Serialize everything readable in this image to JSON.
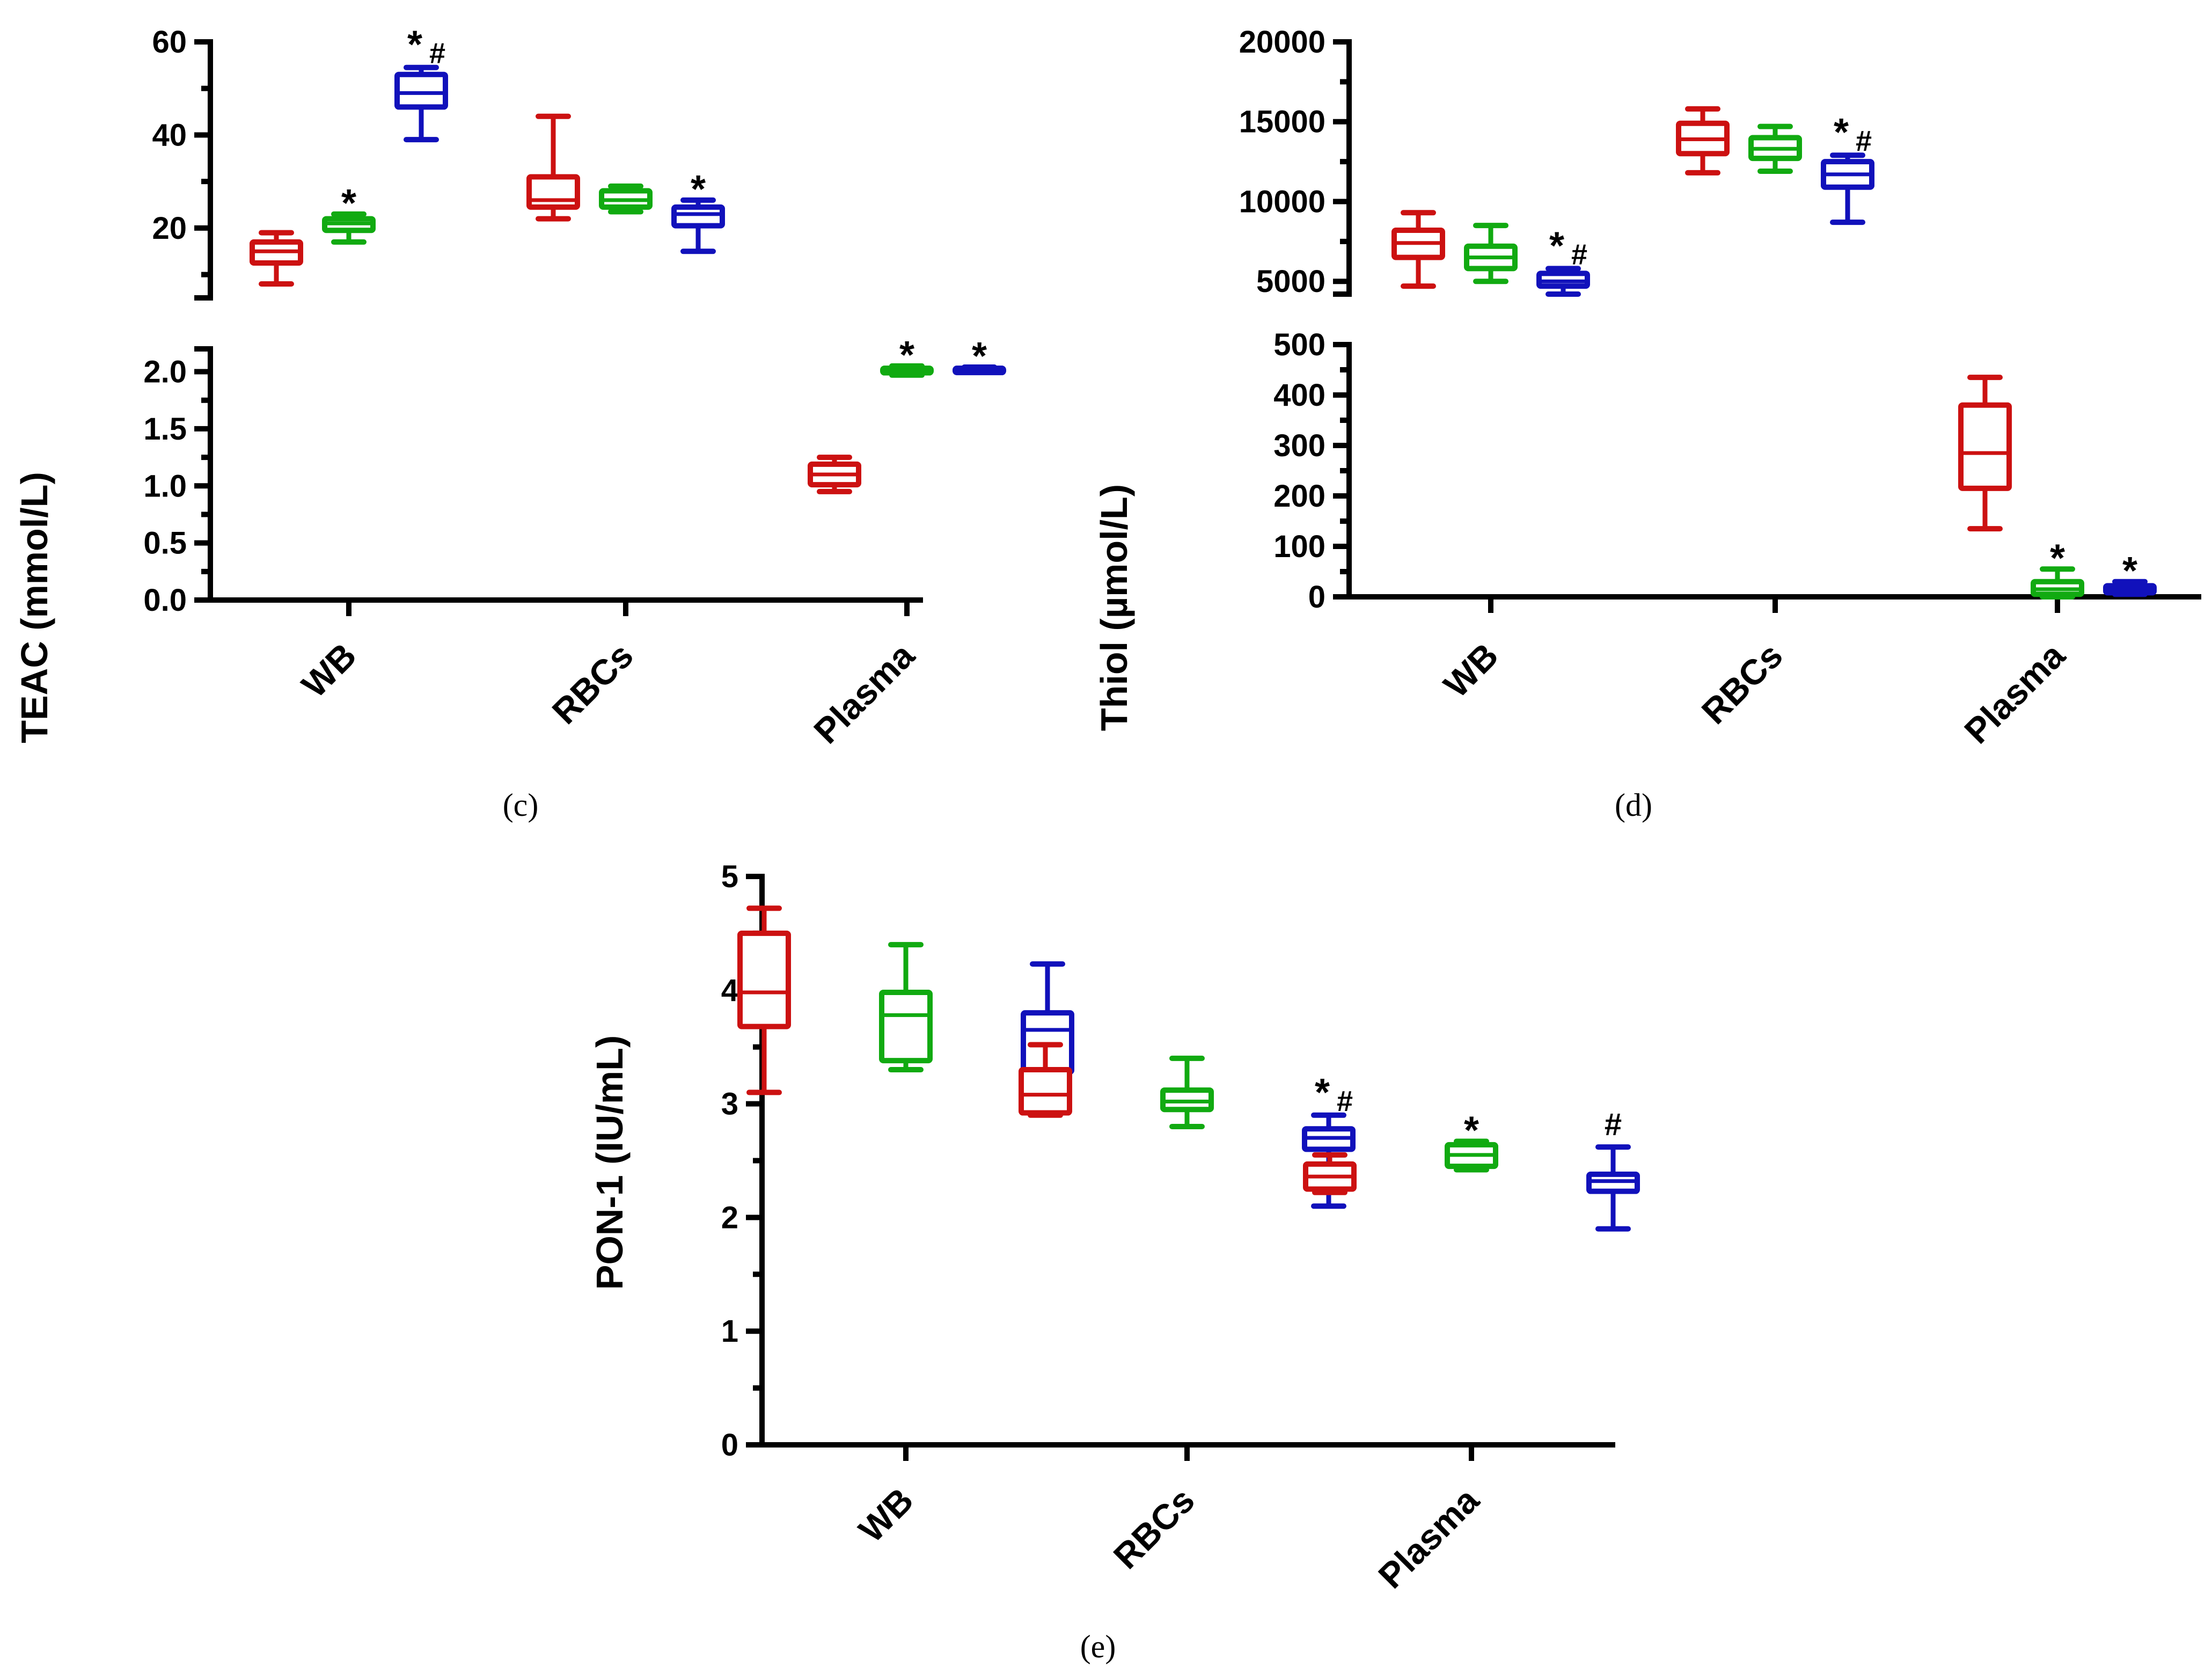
{
  "colors": {
    "g1": "#cc1111",
    "g2": "#11aa11",
    "g3": "#1111bb",
    "axis": "#000000"
  },
  "chart_data": [
    {
      "id": "c",
      "type": "box",
      "caption": "(c)",
      "ylabel": "TEAC (mmol/L)",
      "categories": [
        "WB",
        "RBCs",
        "Plasma"
      ],
      "broken_axis": true,
      "upper": {
        "ylim": [
          5,
          60
        ],
        "ticks": [
          20,
          40,
          60
        ],
        "tick_labels": [
          "20",
          "40",
          "60"
        ],
        "minor_ticks": [
          10,
          30,
          50
        ]
      },
      "lower": {
        "ylim": [
          0,
          2.2
        ],
        "ticks": [
          0,
          0.5,
          1.0,
          1.5,
          2.0
        ],
        "tick_labels": [
          "0.0",
          "0.5",
          "1.0",
          "1.5",
          "2.0"
        ],
        "minor_ticks": [
          0.25,
          0.75,
          1.25,
          1.75
        ]
      },
      "boxes": [
        {
          "cat": 0,
          "g": 0,
          "seg": "upper",
          "min": 8,
          "q1": 12.5,
          "med": 15,
          "q3": 17,
          "max": 19,
          "sig": ""
        },
        {
          "cat": 0,
          "g": 1,
          "seg": "upper",
          "min": 17,
          "q1": 19.5,
          "med": 21,
          "q3": 22,
          "max": 23,
          "sig": "*"
        },
        {
          "cat": 0,
          "g": 2,
          "seg": "upper",
          "min": 39,
          "q1": 46,
          "med": 49,
          "q3": 53,
          "max": 54.5,
          "sig": "*#"
        },
        {
          "cat": 1,
          "g": 0,
          "seg": "upper",
          "min": 22,
          "q1": 24.5,
          "med": 26,
          "q3": 31,
          "max": 44,
          "sig": ""
        },
        {
          "cat": 1,
          "g": 1,
          "seg": "upper",
          "min": 23.5,
          "q1": 24.5,
          "med": 26,
          "q3": 28,
          "max": 29,
          "sig": ""
        },
        {
          "cat": 1,
          "g": 2,
          "seg": "upper",
          "min": 15,
          "q1": 20.5,
          "med": 23,
          "q3": 24.5,
          "max": 26,
          "sig": "*"
        },
        {
          "cat": 2,
          "g": 0,
          "seg": "lower",
          "min": 0.95,
          "q1": 1.01,
          "med": 1.1,
          "q3": 1.19,
          "max": 1.25,
          "sig": ""
        },
        {
          "cat": 2,
          "g": 1,
          "seg": "lower",
          "min": 1.97,
          "q1": 1.99,
          "med": 2.01,
          "q3": 2.03,
          "max": 2.05,
          "sig": "*"
        },
        {
          "cat": 2,
          "g": 2,
          "seg": "lower",
          "min": 2.0,
          "q1": 2.01,
          "med": 2.02,
          "q3": 2.03,
          "max": 2.04,
          "sig": "*"
        }
      ]
    },
    {
      "id": "d",
      "type": "box",
      "caption": "(d)",
      "ylabel": "Thiol (µmol/L)",
      "categories": [
        "WB",
        "RBCs",
        "Plasma"
      ],
      "broken_axis": true,
      "upper": {
        "ylim": [
          4200,
          20000
        ],
        "ticks": [
          5000,
          10000,
          15000,
          20000
        ],
        "tick_labels": [
          "5000",
          "10000",
          "15000",
          "20000"
        ],
        "minor_ticks": [
          7500,
          12500,
          17500
        ]
      },
      "lower": {
        "ylim": [
          0,
          500
        ],
        "ticks": [
          0,
          100,
          200,
          300,
          400,
          500
        ],
        "tick_labels": [
          "0",
          "100",
          "200",
          "300",
          "400",
          "500"
        ],
        "minor_ticks": [
          50,
          150,
          250,
          350,
          450
        ]
      },
      "boxes": [
        {
          "cat": 0,
          "g": 0,
          "seg": "upper",
          "min": 4700,
          "q1": 6500,
          "med": 7400,
          "q3": 8200,
          "max": 9300,
          "sig": ""
        },
        {
          "cat": 0,
          "g": 1,
          "seg": "upper",
          "min": 5000,
          "q1": 5800,
          "med": 6500,
          "q3": 7200,
          "max": 8500,
          "sig": ""
        },
        {
          "cat": 0,
          "g": 2,
          "seg": "upper",
          "min": 4200,
          "q1": 4700,
          "med": 5000,
          "q3": 5500,
          "max": 5800,
          "sig": "*#"
        },
        {
          "cat": 1,
          "g": 0,
          "seg": "upper",
          "min": 11800,
          "q1": 13000,
          "med": 13900,
          "q3": 14900,
          "max": 15800,
          "sig": ""
        },
        {
          "cat": 1,
          "g": 1,
          "seg": "upper",
          "min": 11900,
          "q1": 12700,
          "med": 13300,
          "q3": 14000,
          "max": 14700,
          "sig": ""
        },
        {
          "cat": 1,
          "g": 2,
          "seg": "upper",
          "min": 8700,
          "q1": 10900,
          "med": 11700,
          "q3": 12500,
          "max": 12900,
          "sig": "*#"
        },
        {
          "cat": 2,
          "g": 0,
          "seg": "lower",
          "min": 135,
          "q1": 215,
          "med": 285,
          "q3": 380,
          "max": 435,
          "sig": ""
        },
        {
          "cat": 2,
          "g": 1,
          "seg": "lower",
          "min": 0,
          "q1": 5,
          "med": 15,
          "q3": 30,
          "max": 55,
          "sig": "*"
        },
        {
          "cat": 2,
          "g": 2,
          "seg": "lower",
          "min": 5,
          "q1": 8,
          "med": 14,
          "q3": 22,
          "max": 30,
          "sig": "*"
        }
      ]
    },
    {
      "id": "e",
      "type": "box",
      "caption": "(e)",
      "ylabel": "PON-1 (IU/mL)",
      "categories": [
        "WB",
        "RBCs",
        "Plasma"
      ],
      "broken_axis": false,
      "upper": {
        "ylim": [
          0,
          5
        ],
        "ticks": [
          0,
          1,
          2,
          3,
          4,
          5
        ],
        "tick_labels": [
          "0",
          "1",
          "2",
          "3",
          "4",
          "5"
        ],
        "minor_ticks": [
          0.5,
          1.5,
          2.5,
          3.5,
          4.5
        ]
      },
      "boxes": [
        {
          "cat": 0,
          "g": 0,
          "seg": "upper",
          "min": 3.1,
          "q1": 3.68,
          "med": 3.98,
          "q3": 4.5,
          "max": 4.72,
          "sig": ""
        },
        {
          "cat": 0,
          "g": 1,
          "seg": "upper",
          "min": 3.3,
          "q1": 3.38,
          "med": 3.78,
          "q3": 3.98,
          "max": 4.4,
          "sig": ""
        },
        {
          "cat": 0,
          "g": 2,
          "seg": "upper",
          "min": 3.18,
          "q1": 3.28,
          "med": 3.65,
          "q3": 3.8,
          "max": 4.23,
          "sig": ""
        },
        {
          "cat": 1,
          "g": 0,
          "seg": "upper",
          "min": 2.9,
          "q1": 2.92,
          "med": 3.08,
          "q3": 3.3,
          "max": 3.52,
          "sig": ""
        },
        {
          "cat": 1,
          "g": 1,
          "seg": "upper",
          "min": 2.8,
          "q1": 2.95,
          "med": 3.02,
          "q3": 3.12,
          "max": 3.4,
          "sig": ""
        },
        {
          "cat": 1,
          "g": 2,
          "seg": "upper",
          "min": 2.1,
          "q1": 2.6,
          "med": 2.7,
          "q3": 2.78,
          "max": 2.9,
          "sig": "*#"
        },
        {
          "cat": 2,
          "g": 0,
          "seg": "upper",
          "min": 2.22,
          "q1": 2.25,
          "med": 2.36,
          "q3": 2.47,
          "max": 2.55,
          "sig": ""
        },
        {
          "cat": 2,
          "g": 1,
          "seg": "upper",
          "min": 2.42,
          "q1": 2.45,
          "med": 2.55,
          "q3": 2.64,
          "max": 2.67,
          "sig": "*"
        },
        {
          "cat": 2,
          "g": 2,
          "seg": "upper",
          "min": 1.9,
          "q1": 2.23,
          "med": 2.32,
          "q3": 2.38,
          "max": 2.62,
          "sig": "#"
        }
      ]
    }
  ]
}
